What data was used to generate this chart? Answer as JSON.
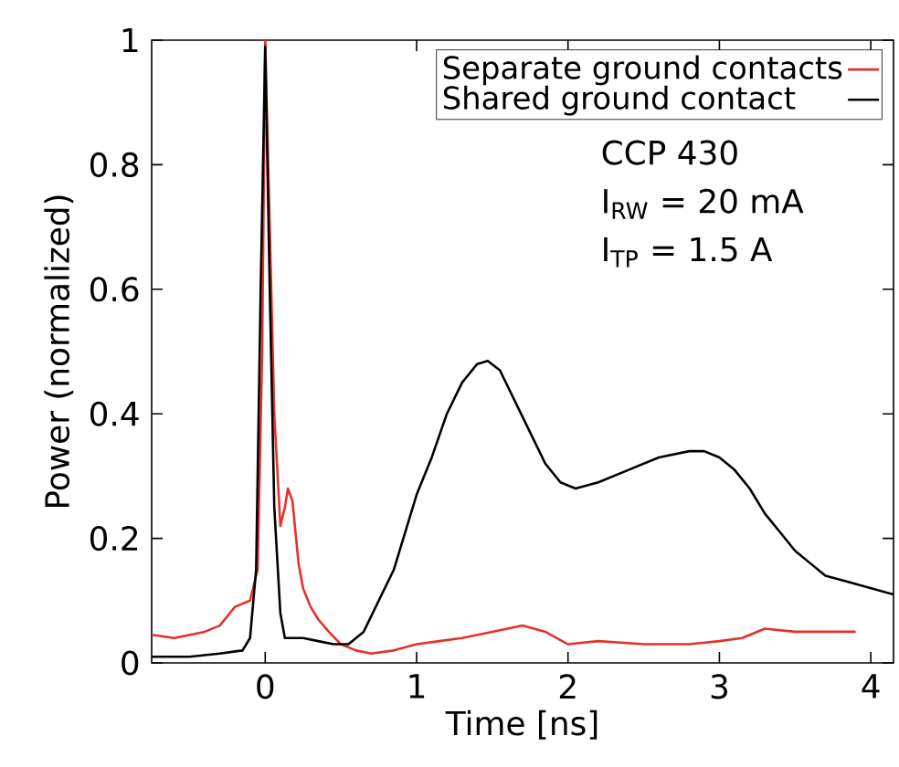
{
  "chart_data": {
    "type": "line",
    "xlabel": "Time [ns]",
    "ylabel": "Power (normalized)",
    "xlim": [
      -0.75,
      4.15
    ],
    "ylim": [
      0,
      1
    ],
    "xticks": [
      0,
      1,
      2,
      3,
      4
    ],
    "yticks": [
      0,
      0.2,
      0.4,
      0.6,
      0.8,
      1
    ],
    "legend": "top right",
    "grid": false,
    "marker": "none",
    "line_style": "solid",
    "annotations": [
      "CCP 430",
      "I$_{RW}$ = 20 mA",
      "I$_{TP}$ = 1.5 A"
    ],
    "series": [
      {
        "name": "Separate ground contacts",
        "color": "#e8302a",
        "x": [
          -0.75,
          -0.6,
          -0.4,
          -0.3,
          -0.2,
          -0.1,
          -0.05,
          -0.02,
          0,
          0.03,
          0.06,
          0.1,
          0.13,
          0.15,
          0.18,
          0.22,
          0.25,
          0.3,
          0.35,
          0.42,
          0.5,
          0.6,
          0.7,
          0.85,
          1.0,
          1.15,
          1.3,
          1.5,
          1.7,
          1.85,
          2.0,
          2.2,
          2.5,
          2.8,
          3.0,
          3.15,
          3.3,
          3.5,
          3.7,
          3.9
        ],
        "values": [
          0.045,
          0.04,
          0.05,
          0.06,
          0.09,
          0.1,
          0.15,
          0.5,
          1.0,
          0.7,
          0.4,
          0.22,
          0.25,
          0.28,
          0.26,
          0.16,
          0.12,
          0.09,
          0.07,
          0.05,
          0.03,
          0.02,
          0.015,
          0.02,
          0.03,
          0.035,
          0.04,
          0.05,
          0.06,
          0.05,
          0.03,
          0.035,
          0.03,
          0.03,
          0.035,
          0.04,
          0.055,
          0.05,
          0.05,
          0.05
        ]
      },
      {
        "name": "Shared ground contact",
        "color": "#000000",
        "x": [
          -0.75,
          -0.5,
          -0.3,
          -0.15,
          -0.1,
          -0.06,
          -0.03,
          0,
          0.03,
          0.06,
          0.1,
          0.13,
          0.17,
          0.25,
          0.35,
          0.45,
          0.55,
          0.65,
          0.75,
          0.85,
          1.0,
          1.1,
          1.2,
          1.3,
          1.4,
          1.47,
          1.55,
          1.65,
          1.75,
          1.85,
          1.95,
          2.05,
          2.2,
          2.4,
          2.6,
          2.8,
          2.9,
          3.0,
          3.1,
          3.2,
          3.3,
          3.4,
          3.5,
          3.6,
          3.7,
          3.85,
          4.0,
          4.15
        ],
        "values": [
          0.01,
          0.01,
          0.015,
          0.02,
          0.04,
          0.15,
          0.6,
          0.99,
          0.6,
          0.25,
          0.08,
          0.04,
          0.04,
          0.04,
          0.035,
          0.03,
          0.03,
          0.05,
          0.1,
          0.15,
          0.27,
          0.33,
          0.4,
          0.45,
          0.48,
          0.485,
          0.47,
          0.42,
          0.37,
          0.32,
          0.29,
          0.28,
          0.29,
          0.31,
          0.33,
          0.34,
          0.34,
          0.33,
          0.31,
          0.28,
          0.24,
          0.21,
          0.18,
          0.16,
          0.14,
          0.13,
          0.12,
          0.11
        ]
      }
    ]
  }
}
